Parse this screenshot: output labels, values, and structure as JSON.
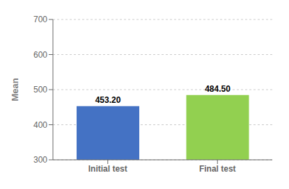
{
  "chart_data": {
    "type": "bar",
    "categories": [
      "Initial test",
      "Final test"
    ],
    "values": [
      453.2,
      484.5
    ],
    "value_labels": [
      "453.20",
      "484.50"
    ],
    "colors": [
      "#4472C4",
      "#92D050"
    ],
    "ylabel": "Mean",
    "ylim": [
      300,
      700
    ],
    "yticks": [
      300,
      400,
      500,
      600,
      700
    ],
    "grid": true,
    "data_labels": true
  }
}
